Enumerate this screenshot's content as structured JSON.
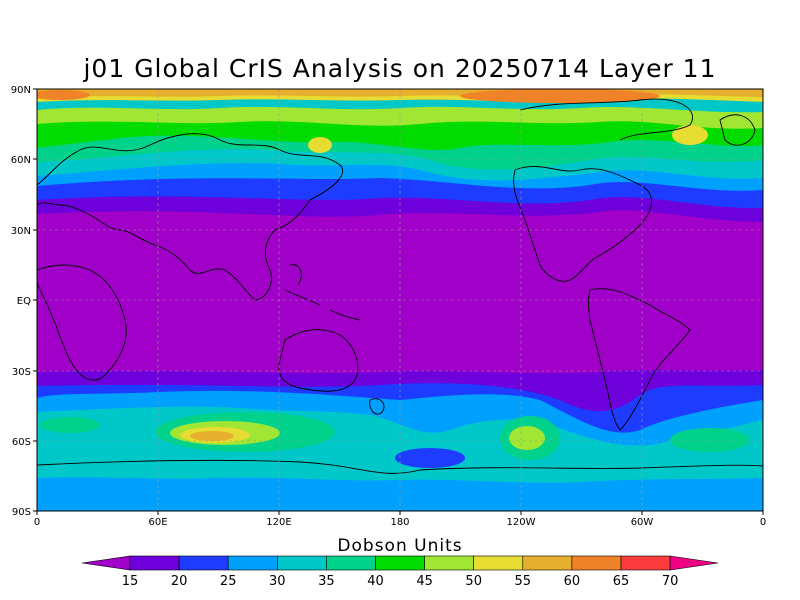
{
  "title": "j01 Global CrIS Analysis on 20250714 Layer 11",
  "lat_ticks": [
    "90N",
    "60N",
    "30N",
    "EQ",
    "30S",
    "60S",
    "90S"
  ],
  "lon_ticks": [
    "0",
    "60E",
    "120E",
    "180",
    "120W",
    "60W",
    "0"
  ],
  "colorbar": {
    "title": "Dobson Units",
    "levels": [
      "15",
      "20",
      "25",
      "30",
      "35",
      "40",
      "45",
      "50",
      "55",
      "60",
      "65",
      "70"
    ],
    "colors": [
      "#a000c8",
      "#6e00dc",
      "#1e3cff",
      "#00a0ff",
      "#00c8c8",
      "#00d28c",
      "#00dc00",
      "#a0e632",
      "#e6dc32",
      "#e6af2d",
      "#f08228",
      "#fa3c3c",
      "#f00082"
    ]
  }
}
